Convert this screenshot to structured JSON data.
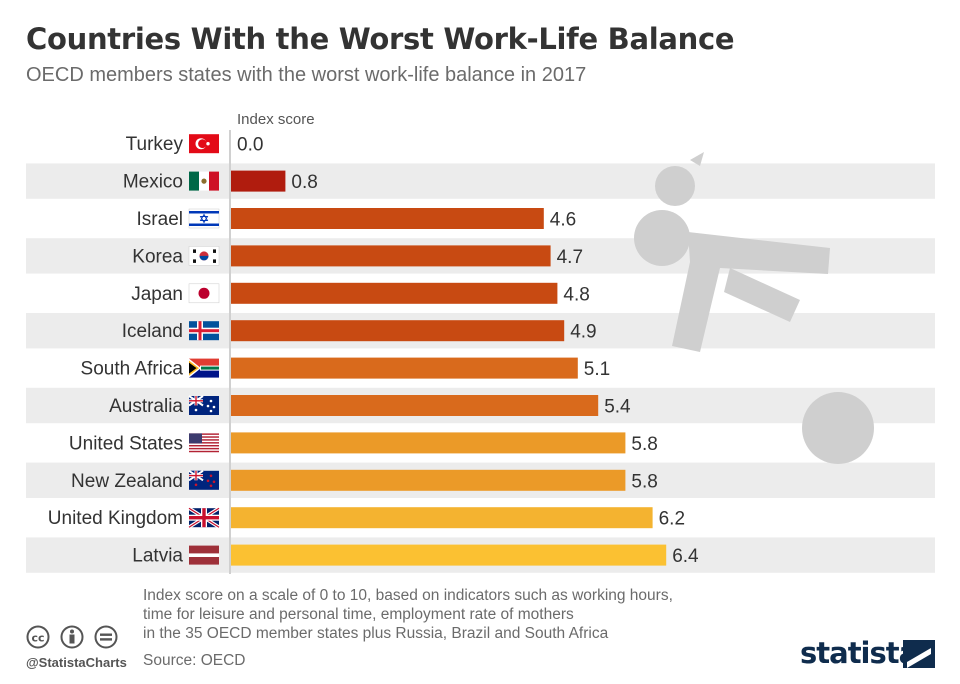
{
  "header": {
    "title": "Countries With the Worst Work-Life Balance",
    "subtitle": "OECD members states with the worst work-life balance in 2017"
  },
  "chart_data": {
    "type": "bar",
    "orientation": "horizontal",
    "axis_label": "Index score",
    "categories": [
      "Turkey",
      "Mexico",
      "Israel",
      "Korea",
      "Japan",
      "Iceland",
      "South Africa",
      "Australia",
      "United States",
      "New Zealand",
      "United Kingdom",
      "Latvia"
    ],
    "values": [
      0.0,
      0.8,
      4.6,
      4.7,
      4.8,
      4.9,
      5.1,
      5.4,
      5.8,
      5.8,
      6.2,
      6.4
    ],
    "value_labels": [
      "0.0",
      "0.8",
      "4.6",
      "4.7",
      "4.8",
      "4.9",
      "5.1",
      "5.4",
      "5.8",
      "5.8",
      "6.2",
      "6.4"
    ],
    "bar_colors": [
      "#b01c0e",
      "#b01c0e",
      "#c84a12",
      "#c84a12",
      "#c84a12",
      "#c84a12",
      "#d96a1c",
      "#d96a1c",
      "#eb9a28",
      "#eb9a28",
      "#f4b330",
      "#fbc132"
    ],
    "flags": [
      "turkey-flag",
      "mexico-flag",
      "israel-flag",
      "korea-flag",
      "japan-flag",
      "iceland-flag",
      "south-africa-flag",
      "australia-flag",
      "united-states-flag",
      "new-zealand-flag",
      "united-kingdom-flag",
      "latvia-flag"
    ],
    "xlim": [
      0,
      10
    ],
    "grid": false
  },
  "footer": {
    "note_lines": [
      "Index score on a scale of 0 to 10, based on indicators such as working hours,",
      "time for leisure and personal time, employment rate of mothers",
      "in the 35 OECD member states plus Russia, Brazil and South Africa"
    ],
    "source": "Source: OECD",
    "handle": "@StatistaCharts",
    "brand": "statista"
  },
  "icons": [
    "cc-icon",
    "by-icon",
    "nd-icon",
    "collapsed-worker-icon",
    "statista-logo-icon"
  ]
}
